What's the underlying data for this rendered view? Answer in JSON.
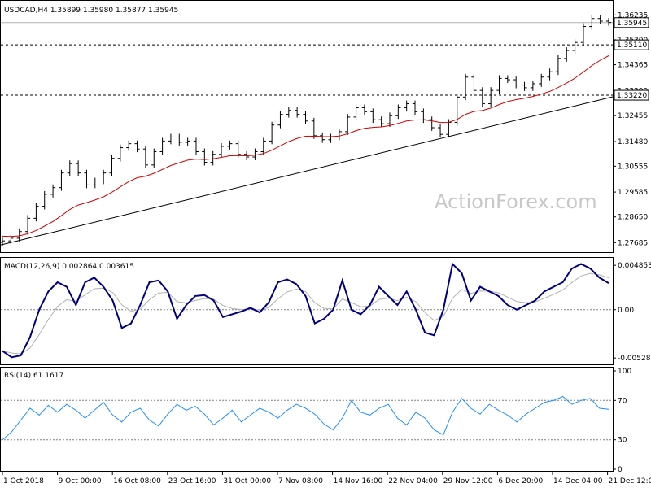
{
  "chart_data": [
    {
      "type": "candlestick",
      "title": "USDCAD,H4  1.35899 1.35980 1.35877 1.35945",
      "watermark": "ActionForex.com",
      "ylim": [
        1.2745,
        1.3655
      ],
      "yticks": [
        "1.36235",
        "1.35300",
        "1.34365",
        "1.33390",
        "1.32455",
        "1.31480",
        "1.30555",
        "1.29585",
        "1.28650",
        "1.27685"
      ],
      "ytick_values": [
        1.36235,
        1.353,
        1.34365,
        1.3339,
        1.32455,
        1.3148,
        1.30555,
        1.29585,
        1.2865,
        1.27685
      ],
      "price_labels": [
        {
          "text": "1.35945",
          "value": 1.35945,
          "style": "solid"
        },
        {
          "text": "1.35110",
          "value": 1.3511,
          "style": "dashed"
        },
        {
          "text": "1.33220",
          "value": 1.3322,
          "style": "dashed"
        }
      ],
      "trendline": {
        "start": 1.276,
        "end": 1.3316
      },
      "ma_color": "#d40000",
      "series": [
        {
          "values": [
            1.2775,
            1.2785,
            1.281,
            1.286,
            1.2905,
            1.295,
            1.2975,
            1.303,
            1.3065,
            1.303,
            1.2985,
            1.3,
            1.303,
            1.3085,
            1.3125,
            1.314,
            1.312,
            1.306,
            1.311,
            1.315,
            1.3165,
            1.3145,
            1.315,
            1.311,
            1.307,
            1.31,
            1.313,
            1.314,
            1.31,
            1.309,
            1.311,
            1.315,
            1.321,
            1.325,
            1.3265,
            1.325,
            1.3225,
            1.317,
            1.3155,
            1.3165,
            1.3185,
            1.324,
            1.3275,
            1.326,
            1.323,
            1.3215,
            1.3245,
            1.3275,
            1.329,
            1.326,
            1.323,
            1.32,
            1.3175,
            1.322,
            1.3315,
            1.339,
            1.334,
            1.329,
            1.334,
            1.3385,
            1.338,
            1.336,
            1.335,
            1.3365,
            1.339,
            1.341,
            1.346,
            1.349,
            1.352,
            1.358,
            1.361,
            1.36,
            1.3595
          ]
        }
      ]
    },
    {
      "type": "line",
      "title": "MACD(12,26,9) 0.002864 0.003615",
      "ylim": [
        -0.0058,
        0.0054
      ],
      "yticks": [
        "0.004853",
        "0.00",
        "-0.005284"
      ],
      "ytick_values": [
        0.004853,
        0.0,
        -0.005284
      ],
      "series": [
        {
          "color": "#000080",
          "values": [
            -0.0045,
            -0.0052,
            -0.005,
            -0.003,
            0.0,
            0.002,
            0.003,
            0.0025,
            0.0005,
            0.003,
            0.0035,
            0.0025,
            0.001,
            -0.002,
            -0.0015,
            0.0005,
            0.003,
            0.0032,
            0.002,
            -0.001,
            0.0005,
            0.0015,
            0.0016,
            0.001,
            -0.0008,
            -0.0005,
            -0.0002,
            0.0002,
            -0.0003,
            0.0008,
            0.003,
            0.0033,
            0.0028,
            0.0015,
            -0.0015,
            -0.001,
            0.0,
            0.0032,
            0.0,
            -0.0005,
            0.0005,
            0.0025,
            0.0015,
            0.0005,
            0.002,
            0.0,
            -0.0025,
            -0.0028,
            0.0,
            0.005,
            0.004,
            0.001,
            0.0025,
            0.002,
            0.0015,
            0.0005,
            0.0,
            0.0005,
            0.001,
            0.002,
            0.0025,
            0.003,
            0.0045,
            0.005,
            0.0045,
            0.0035,
            0.0029
          ]
        }
      ]
    },
    {
      "type": "line",
      "title": "RSI(14) 61.1617",
      "ylim": [
        0,
        100
      ],
      "yticks": [
        "100",
        "70",
        "30",
        "0"
      ],
      "ytick_values": [
        100,
        70,
        30,
        0
      ],
      "series": [
        {
          "color": "#1e90ff",
          "values": [
            30,
            38,
            50,
            62,
            55,
            65,
            58,
            66,
            60,
            52,
            60,
            68,
            55,
            48,
            58,
            62,
            50,
            44,
            56,
            66,
            60,
            64,
            56,
            45,
            52,
            60,
            48,
            55,
            62,
            58,
            52,
            60,
            66,
            62,
            56,
            46,
            40,
            52,
            70,
            58,
            55,
            62,
            66,
            52,
            45,
            58,
            52,
            40,
            35,
            58,
            72,
            62,
            56,
            66,
            60,
            55,
            48,
            56,
            62,
            68,
            70,
            74,
            66,
            70,
            72,
            62,
            61
          ]
        }
      ]
    }
  ],
  "x_labels": [
    "1 Oct 2018",
    "9 Oct 00:00",
    "16 Oct 08:00",
    "23 Oct 16:00",
    "31 Oct 00:00",
    "7 Nov 08:00",
    "14 Nov 16:00",
    "22 Nov 04:00",
    "29 Nov 12:00",
    "6 Dec 20:00",
    "14 Dec 04:00",
    "21 Dec 12:00"
  ]
}
